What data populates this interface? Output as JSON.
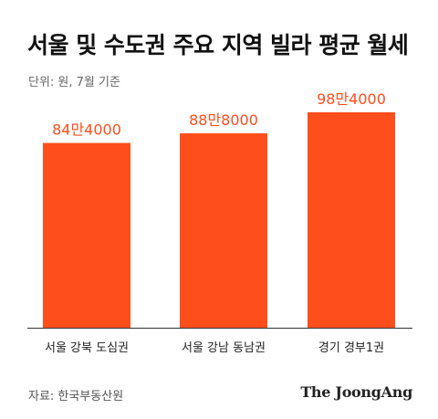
{
  "title": "서울 및 수도권 주요 지역 빌라 평균 월세",
  "unit_note": "단위: 원, 7월 기준",
  "source": "자료: 한국부동산원",
  "logo_text": "The JoongAng",
  "colors": {
    "bar": "#FD4E1C",
    "label": "#FD4E1C",
    "axis": "#333333"
  },
  "chart_data": {
    "type": "bar",
    "categories": [
      "서울 강북 도심권",
      "서울 강남 동남권",
      "경기 경부1권"
    ],
    "values": [
      844000,
      888000,
      984000
    ],
    "data_labels": [
      "84만4000",
      "88만8000",
      "98만4000"
    ],
    "ylim": [
      0,
      1080000
    ],
    "grid": false,
    "legend": "none"
  }
}
